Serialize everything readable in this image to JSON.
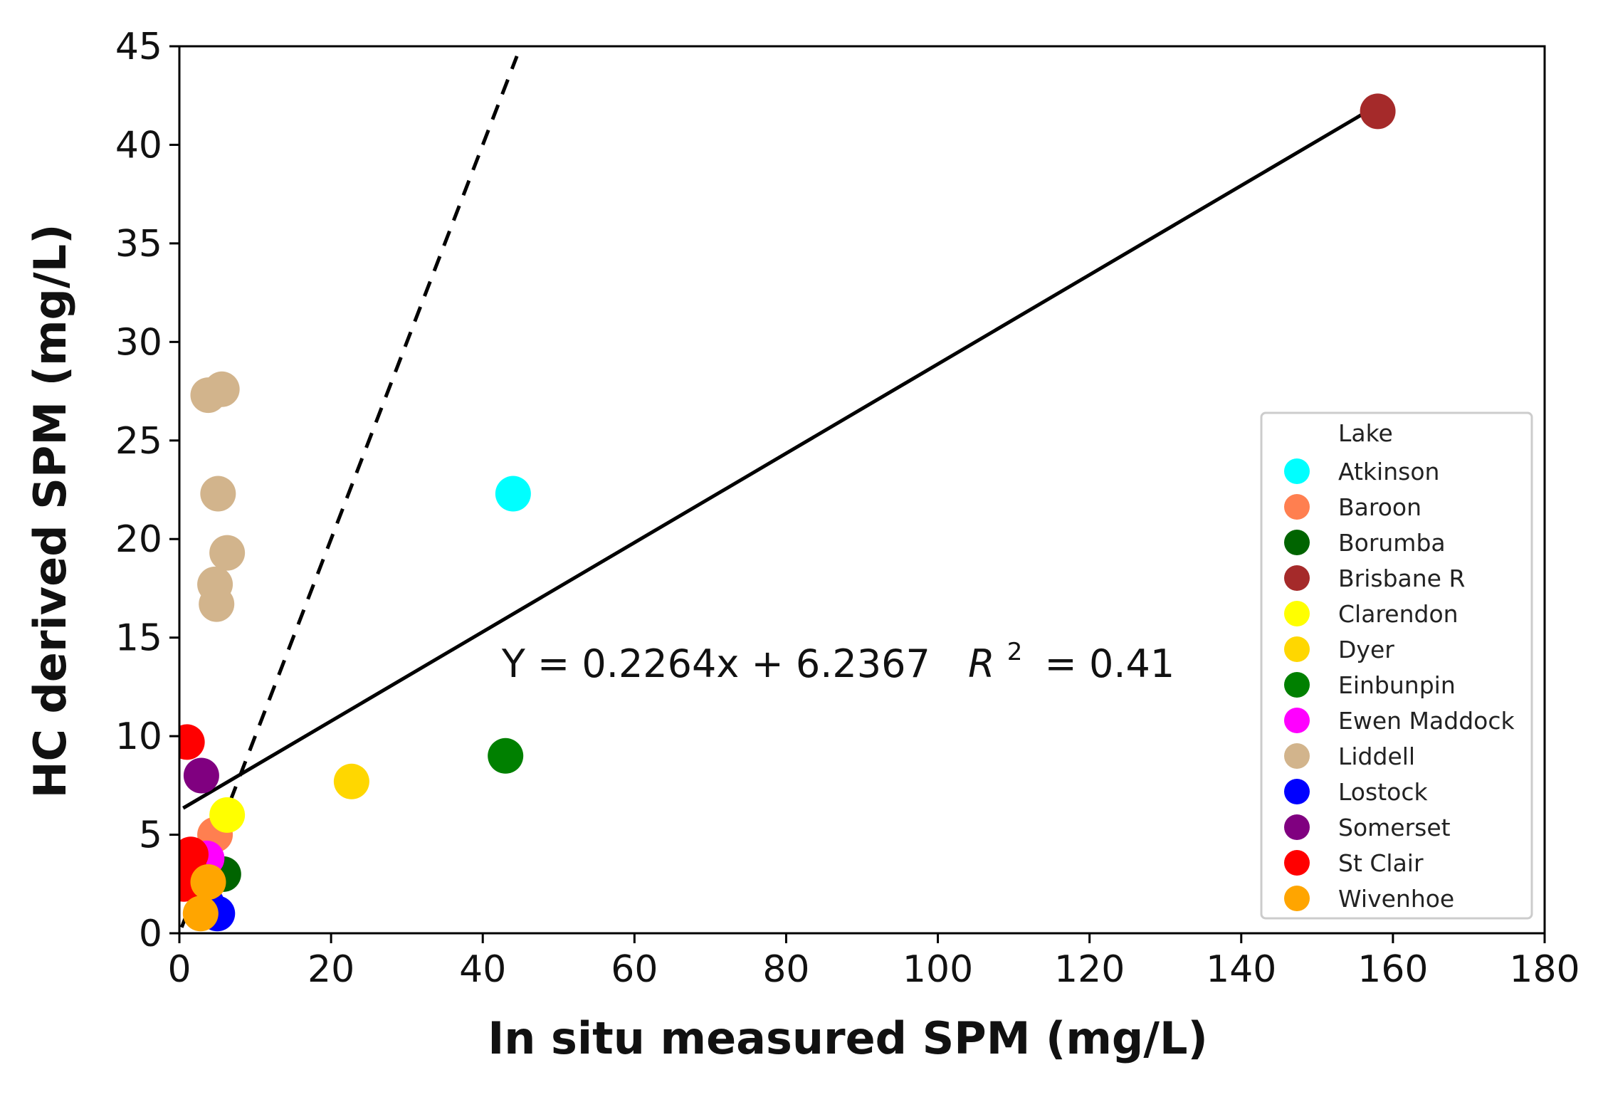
{
  "chart_data": {
    "type": "scatter",
    "title": "",
    "xlabel": "In situ measured SPM (mg/L)",
    "ylabel": "HC derived SPM (mg/L)",
    "xlim": [
      0,
      180
    ],
    "ylim": [
      0,
      45
    ],
    "xticks": [
      0,
      20,
      40,
      60,
      80,
      100,
      120,
      140,
      160,
      180
    ],
    "yticks": [
      0,
      5,
      10,
      15,
      20,
      25,
      30,
      35,
      40,
      45
    ],
    "xtick_labels": [
      "0",
      "20",
      "40",
      "60",
      "80",
      "100",
      "120",
      "140",
      "160",
      "180"
    ],
    "ytick_labels": [
      "0",
      "5",
      "10",
      "15",
      "20",
      "25",
      "30",
      "35",
      "40",
      "45"
    ],
    "legend": {
      "title": "Lake",
      "position": "lower-right"
    },
    "regression": {
      "slope": 0.2264,
      "intercept": 6.2367,
      "x_range": [
        0.5,
        158
      ],
      "label": "Y = 0.2264x + 6.2367",
      "r2_label": "= 0.41",
      "r2_symbol": "R",
      "r2_sup": "2"
    },
    "one_to_one_line": {
      "style": "dashed",
      "x_range": [
        0.3,
        44.5
      ]
    },
    "series": [
      {
        "name": "Atkinson",
        "color": "#00FFFF",
        "points": [
          [
            44,
            22.3
          ]
        ]
      },
      {
        "name": "Baroon",
        "color": "#FF7F50",
        "points": [
          [
            4.7,
            5.0
          ]
        ]
      },
      {
        "name": "Borumba",
        "color": "#006400",
        "points": [
          [
            5.8,
            3.0
          ]
        ]
      },
      {
        "name": "Brisbane R",
        "color": "#A52A2A",
        "points": [
          [
            158,
            41.7
          ]
        ]
      },
      {
        "name": "Clarendon",
        "color": "#FFFF00",
        "points": [
          [
            6.3,
            6.0
          ]
        ]
      },
      {
        "name": "Dyer",
        "color": "#FFD700",
        "points": [
          [
            22.7,
            7.7
          ]
        ]
      },
      {
        "name": "Einbunpin",
        "color": "#008000",
        "points": [
          [
            43,
            9.0
          ]
        ]
      },
      {
        "name": "Ewen Maddock",
        "color": "#FF00FF",
        "points": [
          [
            3.6,
            3.8
          ]
        ]
      },
      {
        "name": "Liddell",
        "color": "#D2B48C",
        "points": [
          [
            3.8,
            27.3
          ],
          [
            5.6,
            27.6
          ],
          [
            5.1,
            22.3
          ],
          [
            6.3,
            19.3
          ],
          [
            4.7,
            17.7
          ],
          [
            4.9,
            16.7
          ]
        ]
      },
      {
        "name": "Lostock",
        "color": "#0000FF",
        "points": [
          [
            5.0,
            1.0
          ],
          [
            3.6,
            1.5
          ]
        ]
      },
      {
        "name": "Somerset",
        "color": "#800080",
        "points": [
          [
            2.9,
            8.0
          ]
        ]
      },
      {
        "name": "St Clair",
        "color": "#FF0000",
        "points": [
          [
            1.0,
            9.7
          ],
          [
            1.5,
            4.0
          ],
          [
            0.9,
            3.0
          ],
          [
            0.6,
            2.5
          ],
          [
            1.2,
            3.5
          ]
        ]
      },
      {
        "name": "Wivenhoe",
        "color": "#FFA500",
        "points": [
          [
            3.8,
            2.6
          ],
          [
            2.8,
            1.0
          ]
        ]
      }
    ]
  }
}
